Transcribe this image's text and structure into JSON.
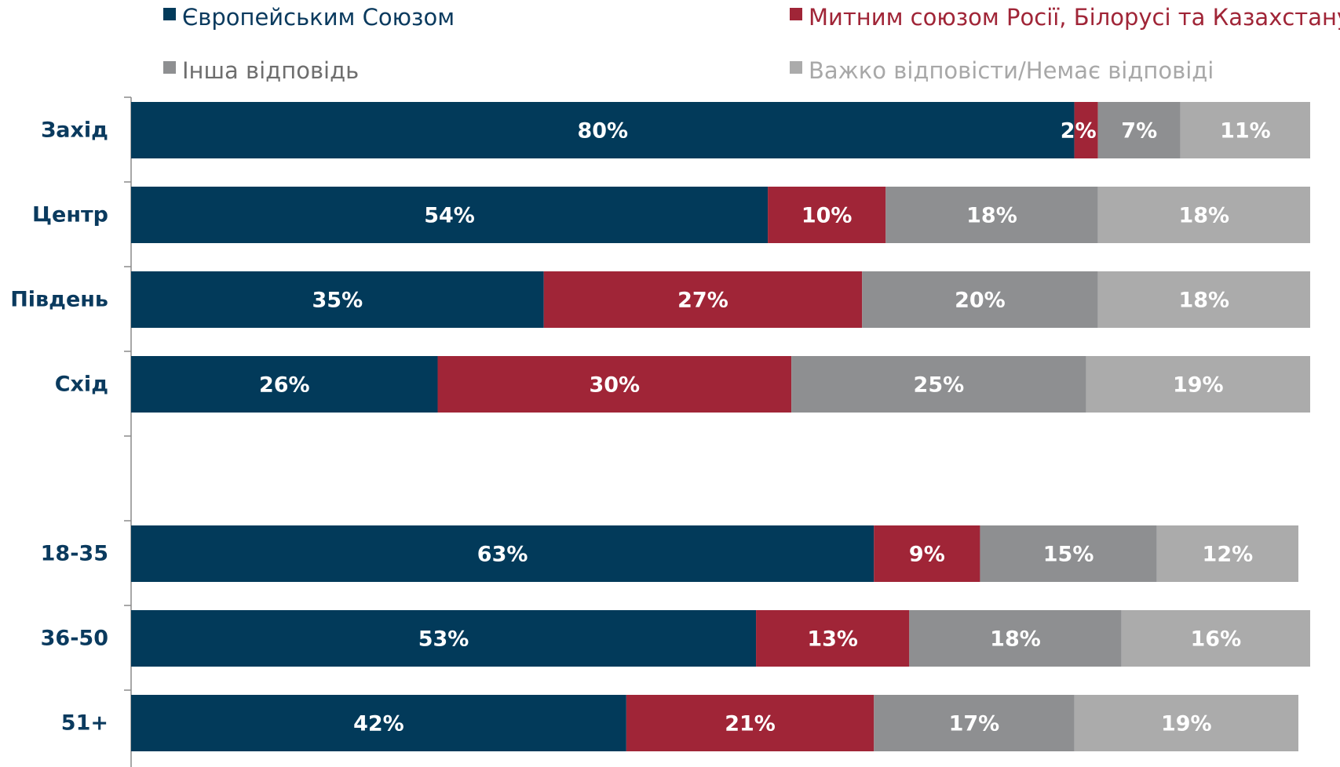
{
  "chart_data": {
    "type": "bar",
    "orientation": "horizontal",
    "stacked": true,
    "percent_stacked": true,
    "xlim": [
      0,
      100
    ],
    "grid": false,
    "legend_position": "top",
    "title": "",
    "xlabel": "",
    "ylabel": "",
    "categories": [
      "Захід",
      "Центр",
      "Південь",
      "Схід",
      "",
      "18-35",
      "36-50",
      "51+"
    ],
    "series": [
      {
        "name": "Європейським Союзом",
        "color": "#023a5a",
        "values": [
          80,
          54,
          35,
          26,
          null,
          63,
          53,
          42
        ],
        "labels": [
          "80%",
          "54%",
          "35%",
          "26%",
          "",
          "63%",
          "53%",
          "42%"
        ]
      },
      {
        "name": "Митним союзом Росії, Білорусі та Казахстану",
        "color": "#a02537",
        "values": [
          2,
          10,
          27,
          30,
          null,
          9,
          13,
          21
        ],
        "labels": [
          "2%",
          "10%",
          "27%",
          "30%",
          "",
          "9%",
          "13%",
          "21%"
        ]
      },
      {
        "name": "Інша відповідь",
        "color": "#8e8f91",
        "values": [
          7,
          18,
          20,
          25,
          null,
          15,
          18,
          17
        ],
        "labels": [
          "7%",
          "18%",
          "20%",
          "25%",
          "",
          "15%",
          "18%",
          "17%"
        ]
      },
      {
        "name": "Важко відповісти/Немає відповіді",
        "color": "#ababab",
        "values": [
          11,
          18,
          18,
          19,
          null,
          12,
          16,
          19
        ],
        "labels": [
          "11%",
          "18%",
          "18%",
          "19%",
          "",
          "12%",
          "16%",
          "19%"
        ]
      }
    ]
  }
}
